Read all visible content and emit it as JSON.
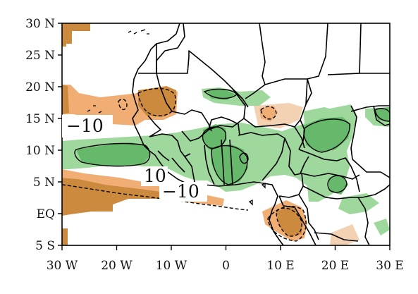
{
  "map": {
    "lon_range": [
      -30,
      30
    ],
    "lat_range": [
      -5,
      30
    ],
    "grid": false,
    "colors": {
      "dry_strong": "#cc8a3e",
      "dry_moderate": "#f0ae74",
      "dry_weak": "#f3d2b4",
      "wet_moderate": "#9fd89c",
      "wet_strong": "#66b96a",
      "boundary": "#000000"
    },
    "y_ticks": [
      {
        "lat": 30,
        "label": "30 N"
      },
      {
        "lat": 25,
        "label": "25 N"
      },
      {
        "lat": 20,
        "label": "20 N"
      },
      {
        "lat": 15,
        "label": "15 N"
      },
      {
        "lat": 10,
        "label": "10 N"
      },
      {
        "lat": 5,
        "label": "5 N"
      },
      {
        "lat": 0,
        "label": "EQ"
      },
      {
        "lat": -5,
        "label": "5 S"
      }
    ],
    "x_ticks": [
      {
        "lon": -30,
        "label": "30 W"
      },
      {
        "lon": -20,
        "label": "20 W"
      },
      {
        "lon": -10,
        "label": "10 W"
      },
      {
        "lon": 0,
        "label": "0"
      },
      {
        "lon": 10,
        "label": "10 E"
      },
      {
        "lon": 20,
        "label": "20 E"
      },
      {
        "lon": 30,
        "label": "30 E"
      }
    ],
    "contour_labels": {
      "neg_upper": "−10",
      "pos": "10",
      "neg_lower": "−10"
    }
  }
}
